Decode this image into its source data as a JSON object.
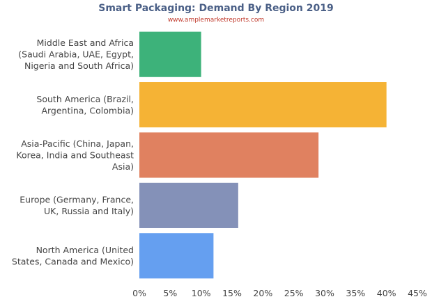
{
  "chart_data": {
    "type": "bar",
    "orientation": "horizontal",
    "title": "Smart Packaging: Demand By Region 2019",
    "subtitle": "www.amplemarketreports.com",
    "xlabel": "",
    "ylabel": "",
    "xlim": [
      0,
      45
    ],
    "x_ticks": [
      "0%",
      "5%",
      "10%",
      "15%",
      "20%",
      "25%",
      "30%",
      "35%",
      "40%",
      "45%"
    ],
    "grid": false,
    "legend": "none",
    "categories": [
      "Middle East and Africa (Saudi Arabia, UAE, Egypt, Nigeria and South Africa)",
      "South America (Brazil, Argentina, Colombia)",
      "Asia-Pacific (China, Japan, Korea, India and Southeast Asia)",
      "Europe (Germany, France, UK, Russia and Italy)",
      "North America (United States, Canada and Mexico)"
    ],
    "category_lines": [
      [
        "Middle East and Africa",
        "(Saudi Arabia, UAE, Egypt,",
        "Nigeria and South Africa)"
      ],
      [
        "South America (Brazil,",
        "Argentina, Colombia)"
      ],
      [
        "Asia-Pacific (China, Japan,",
        "Korea, India and Southeast",
        "Asia)"
      ],
      [
        "Europe (Germany, France,",
        "UK, Russia and Italy)"
      ],
      [
        "North America (United",
        "States, Canada and Mexico)"
      ]
    ],
    "values": [
      10,
      40,
      29,
      16,
      12
    ],
    "colors": [
      "#3db27a",
      "#f5b335",
      "#e08160",
      "#8491b8",
      "#659ff0"
    ]
  }
}
